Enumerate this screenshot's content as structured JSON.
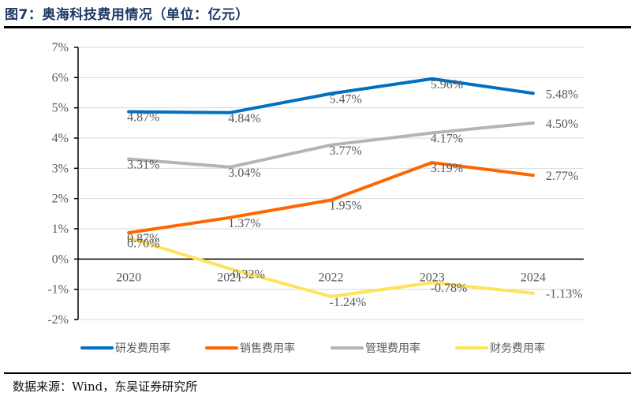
{
  "header": {
    "title": "图7：奥海科技费用情况（单位：亿元）"
  },
  "footer": {
    "source": "数据来源：Wind，东吴证券研究所"
  },
  "chart_data": {
    "type": "line",
    "title": "图7：奥海科技费用情况（单位：亿元）",
    "xlabel": "",
    "ylabel": "",
    "categories": [
      "2020",
      "2021",
      "2022",
      "2023",
      "2024"
    ],
    "ylim": [
      -2,
      7
    ],
    "yticks": [
      7,
      6,
      5,
      4,
      3,
      2,
      1,
      0,
      -1,
      -2
    ],
    "ytick_labels": [
      "7%",
      "6%",
      "5%",
      "4%",
      "3%",
      "2%",
      "1%",
      "0%",
      "-1%",
      "-2%"
    ],
    "grid": true,
    "legend_position": "bottom",
    "series": [
      {
        "name": "研发费用率",
        "color": "#0070c0",
        "values": [
          4.87,
          4.84,
          5.47,
          5.96,
          5.48
        ],
        "labels": [
          "4.87%",
          "4.84%",
          "5.47%",
          "5.96%",
          "5.48%"
        ]
      },
      {
        "name": "销售费用率",
        "color": "#ff6600",
        "values": [
          0.87,
          1.37,
          1.95,
          3.19,
          2.77
        ],
        "labels": [
          "0.87%",
          "1.37%",
          "1.95%",
          "3.19%",
          "2.77%"
        ]
      },
      {
        "name": "管理费用率",
        "color": "#b4b4b4",
        "values": [
          3.31,
          3.04,
          3.77,
          4.17,
          4.5
        ],
        "labels": [
          "3.31%",
          "3.04%",
          "3.77%",
          "4.17%",
          "4.50%"
        ]
      },
      {
        "name": "财务费用率",
        "color": "#ffe35c",
        "values": [
          0.7,
          -0.32,
          -1.24,
          -0.78,
          -1.13
        ],
        "labels": [
          "0.70%",
          "-0.32%",
          "-1.24%",
          "-0.78%",
          "-1.13%"
        ]
      }
    ]
  }
}
